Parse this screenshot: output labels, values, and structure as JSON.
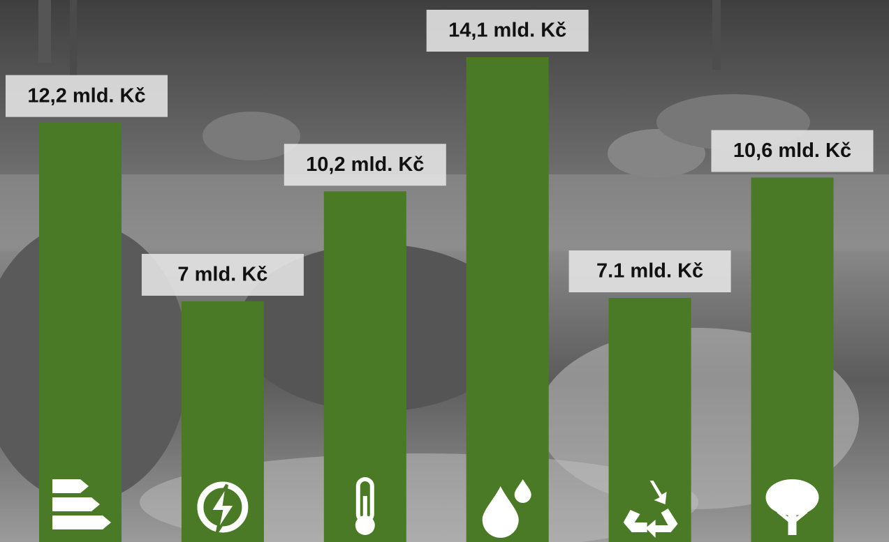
{
  "chart_data": {
    "type": "bar",
    "categories": [
      null,
      null,
      null,
      null,
      null,
      null
    ],
    "values": [
      12.2,
      7,
      10.2,
      14.1,
      7.1,
      10.6
    ],
    "value_labels": [
      "12,2 mld. Kč",
      "7 mld. Kč",
      "10,2 mld. Kč",
      "14,1 mld. Kč",
      "7.1 mld. Kč",
      "10,6 mld. Kč"
    ],
    "color": "#4a7a25"
  }
}
